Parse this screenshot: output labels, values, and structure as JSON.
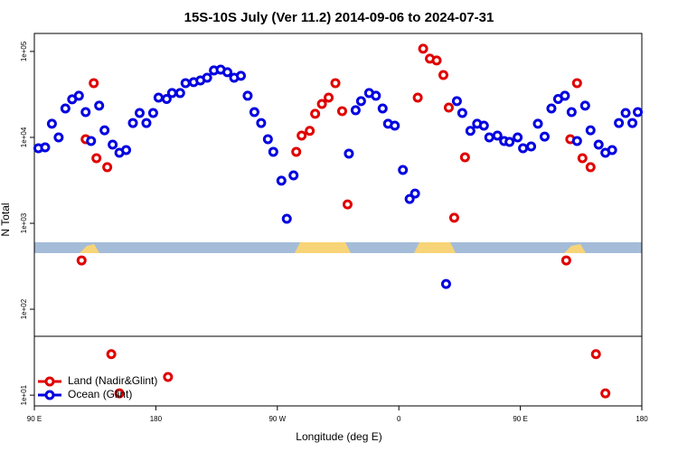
{
  "chart_data": {
    "type": "scatter",
    "title": "15S-10S July (Ver 11.2)   2014-09-06 to 2024-07-31",
    "xlabel": "Longitude (deg E)",
    "ylabel": "N Total",
    "xlim": [
      90,
      540
    ],
    "ylim": [
      7.5,
      162000
    ],
    "log_y": true,
    "legend": "lower left",
    "xticks": [
      {
        "value": 90,
        "label": "90 E"
      },
      180,
      {
        "value": 270,
        "label": "90 W"
      },
      {
        "value": 360,
        "label": "0"
      },
      {
        "value": 450,
        "label": "90 E"
      },
      {
        "value": 540,
        "label": "180"
      }
    ],
    "yticks": [
      {
        "value": 10,
        "label": "1e+01"
      },
      {
        "value": 100,
        "label": "1e+02"
      },
      {
        "value": 1000,
        "label": "1e+03"
      },
      {
        "value": 10000,
        "label": "1e+04"
      },
      {
        "value": 100000,
        "label": "1e+05"
      }
    ],
    "series": [
      {
        "name": "Land (Nadir&Glint)",
        "color": "#e00000",
        "x": [
          125,
          128,
          134,
          136,
          144,
          147,
          153,
          189,
          284,
          288,
          294,
          298,
          303,
          308,
          313,
          318,
          322,
          374,
          378,
          383,
          388,
          393,
          397,
          401,
          409,
          484,
          487,
          492,
          496,
          502,
          506,
          513
        ],
        "values": [
          370,
          9530,
          42800,
          5730,
          4500,
          30,
          10.5,
          16.3,
          6790,
          10500,
          11900,
          18800,
          24500,
          29000,
          42800,
          20200,
          1660,
          29000,
          107600,
          82400,
          78500,
          53200,
          22200,
          1160,
          5860,
          370,
          9530,
          42800,
          5730,
          4500,
          30,
          10.5
        ]
      },
      {
        "name": "Ocean (Glint)",
        "color": "#0000e0",
        "x": [
          93,
          98,
          103,
          108,
          113,
          118,
          123,
          128,
          132,
          138,
          142,
          148,
          153,
          158,
          163,
          168,
          173,
          178,
          182,
          188,
          192,
          198,
          202,
          208,
          213,
          218,
          223,
          228,
          233,
          238,
          243,
          248,
          253,
          258,
          263,
          267,
          273,
          277,
          282,
          323,
          328,
          332,
          338,
          343,
          348,
          352,
          357,
          363,
          368,
          372,
          395,
          403,
          407,
          413,
          418,
          423,
          427,
          433,
          438,
          442,
          448,
          452,
          458,
          463,
          468,
          473,
          478,
          483,
          488,
          492,
          498,
          502,
          508,
          513,
          518,
          523,
          528,
          533,
          537
        ],
        "values": [
          7480,
          7650,
          14400,
          10000,
          21700,
          27700,
          30500,
          19700,
          9080,
          23400,
          12100,
          8240,
          6620,
          7120,
          14700,
          19200,
          14700,
          19200,
          29000,
          28000,
          32800,
          32800,
          42800,
          43900,
          46000,
          49500,
          60100,
          61500,
          57300,
          49500,
          52000,
          30500,
          19700,
          14700,
          9530,
          6790,
          3130,
          1130,
          3610,
          6470,
          20700,
          26400,
          32800,
          30500,
          21700,
          14400,
          13700,
          4180,
          1920,
          2220,
          197,
          26400,
          19200,
          11900,
          14400,
          13700,
          10000,
          10500,
          9080,
          8860,
          10000,
          7480,
          7850,
          14400,
          10200,
          21700,
          28000,
          30500,
          19700,
          9080,
          23400,
          12100,
          8240,
          6620,
          7120,
          14700,
          19200,
          14700,
          19700
        ]
      }
    ]
  }
}
